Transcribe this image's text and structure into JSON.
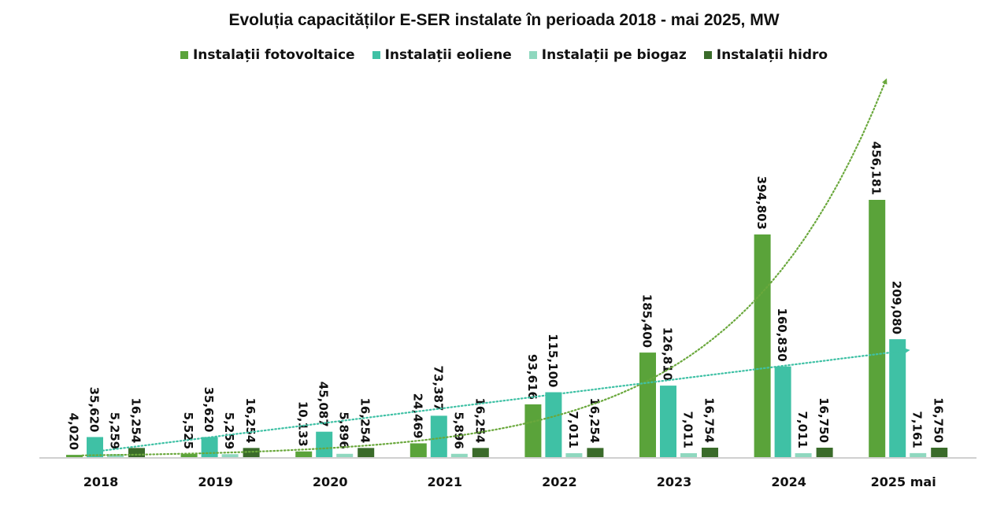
{
  "chart_data": {
    "type": "bar",
    "title": "Evoluția capacităților E-SER instalate în perioada 2018 - mai 2025, MW",
    "categories": [
      "2018",
      "2019",
      "2020",
      "2021",
      "2022",
      "2023",
      "2024",
      "2025 mai"
    ],
    "series": [
      {
        "name": "Instalații fotovoltaice",
        "color": "#5aa33a",
        "values": [
          4.02,
          5.525,
          10.133,
          24.469,
          93.616,
          185.4,
          394.803,
          456.181
        ],
        "labels": [
          "4,020",
          "5,525",
          "10,133",
          "24,469",
          "93,616",
          "185,400",
          "394,803",
          "456,181"
        ]
      },
      {
        "name": "Instalații eoliene",
        "color": "#3fc1a5",
        "values": [
          35.62,
          35.62,
          45.087,
          73.387,
          115.1,
          126.81,
          160.83,
          209.08
        ],
        "labels": [
          "35,620",
          "35,620",
          "45,087",
          "73,387",
          "115,100",
          "126,810",
          "160,830",
          "209,080"
        ]
      },
      {
        "name": "Instalații pe biogaz",
        "color": "#8fd8bf",
        "values": [
          5.259,
          5.259,
          5.896,
          5.896,
          7.011,
          7.011,
          7.011,
          7.161
        ],
        "labels": [
          "5,259",
          "5,259",
          "5,896",
          "5,896",
          "7,011",
          "7,011",
          "7,011",
          "7,161"
        ]
      },
      {
        "name": "Instalații hidro",
        "color": "#3a6b2a",
        "values": [
          16.254,
          16.254,
          16.254,
          16.254,
          16.254,
          16.754,
          16.75,
          16.75
        ],
        "labels": [
          "16,254",
          "16,254",
          "16,254",
          "16,254",
          "16,254",
          "16,754",
          "16,750",
          "16,750"
        ]
      }
    ],
    "trendlines": [
      {
        "series": "Instalații fotovoltaice",
        "kind": "exponential",
        "style": "dotted",
        "arrow": true
      },
      {
        "series": "Instalații eoliene",
        "kind": "linear",
        "style": "dotted",
        "arrow": true
      }
    ],
    "legend": "top",
    "grid": false,
    "ylim": [
      0,
      470
    ]
  }
}
